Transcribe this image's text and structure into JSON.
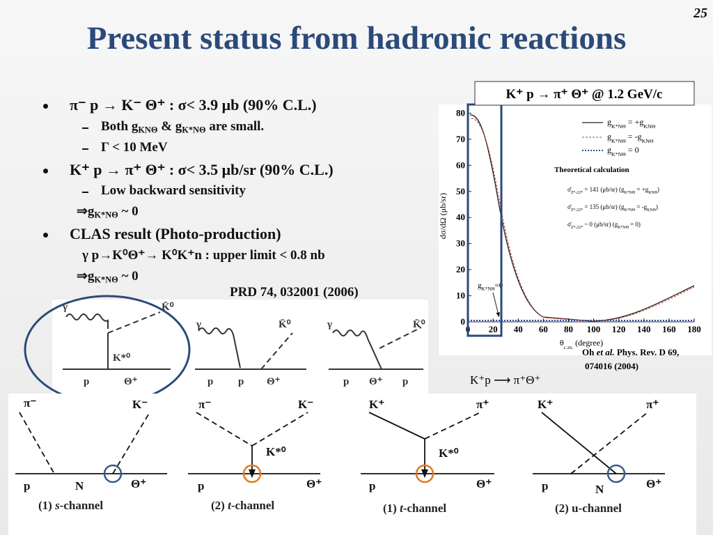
{
  "slide": {
    "page_number": "25",
    "title": "Present status from hadronic reactions"
  },
  "bullets": [
    {
      "text": "π⁻  p → K⁻  Θ⁺ : σ< 3.9 μb (90% C.L.)",
      "subitems": [
        [
          "Both g",
          "KNΘ",
          " & g",
          "K*NΘ",
          " are small."
        ],
        [
          "Γ < 10 MeV"
        ]
      ]
    },
    {
      "text": "K⁺ p → π⁺  Θ⁺ : σ< 3.5 μb/sr  (90% C.L.)",
      "subitems": [
        [
          "Low backward sensitivity"
        ]
      ],
      "notes": [
        [
          "⇒g",
          "K*NΘ",
          " ~ 0"
        ]
      ]
    },
    {
      "text": "CLAS result (Photo-production)",
      "notes": [
        [
          "γ p→K⁰Θ⁺→ K⁰K⁺n : upper limit < 0.8 nb"
        ],
        [
          "⇒g",
          "K*NΘ",
          " ~ 0"
        ]
      ]
    }
  ],
  "reference": "PRD 74, 032001 (2006)",
  "plot": {
    "title": "K⁺ p → π⁺  Θ⁺ @ 1.2 GeV/c",
    "x_label": [
      "θ",
      "c.m.",
      " (degree)"
    ],
    "y_label": "dσ/dΩ (μb/sr)",
    "xlim": [
      0,
      180
    ],
    "ylim": [
      0,
      82
    ],
    "xticks": [
      0,
      20,
      40,
      60,
      80,
      100,
      120,
      140,
      160,
      180
    ],
    "yticks": [
      0,
      10,
      20,
      30,
      40,
      50,
      60,
      70,
      80
    ],
    "legend": [
      [
        "g",
        "K*NΘ",
        " = +g",
        "KNΘ"
      ],
      [
        "g",
        "K*NΘ",
        " = -g",
        "KNΘ"
      ],
      [
        "g",
        "K*NΘ",
        " = 0"
      ]
    ],
    "theory_title": "Theoretical calculation",
    "theory_lines": [
      [
        "σ̄",
        "Z*-22*",
        " = 141 (μb/sr) (g",
        "K*NΘ",
        " = +g",
        "KNΘ",
        ")"
      ],
      [
        "σ̄",
        "Z*-22*",
        " = 135 (μb/sr) (g",
        "K*NΘ",
        " = -g",
        "KNΘ",
        ")"
      ],
      [
        "σ̄",
        "Z*-22*",
        " ~ 0 (μb/sr) (g",
        "K*NΘ",
        " = 0)"
      ]
    ],
    "annotation": [
      "g",
      "K*NΘ",
      "=0"
    ],
    "citation": [
      [
        "Oh ",
        "et al.",
        " Phys. Rev. D 69,"
      ],
      [
        "074016 (2004)"
      ]
    ]
  },
  "photo_diagrams": [
    {
      "labels": [
        "γ",
        "K̄⁰",
        "K*⁰",
        "p",
        "Θ⁺"
      ]
    },
    {
      "labels": [
        "γ",
        "K̄⁰",
        "p",
        "p",
        "Θ⁺"
      ]
    },
    {
      "labels": [
        "γ",
        "K̄⁰",
        "p",
        "Θ⁺",
        "p"
      ]
    }
  ],
  "reaction": "K⁺p ⟶ π⁺Θ⁺",
  "hadron_diagrams": [
    {
      "labels": [
        "π⁻",
        "K⁻",
        "p",
        "N",
        "Θ⁺"
      ],
      "caption": [
        "(1) ",
        "s",
        "-channel"
      ]
    },
    {
      "labels": [
        "π⁻",
        "K⁻",
        "K*⁰",
        "p",
        "Θ⁺"
      ],
      "caption": [
        "(2) ",
        "t",
        "-channel"
      ]
    },
    {
      "labels": [
        "K⁺",
        "π⁺",
        "K*⁰",
        "p",
        "Θ⁺"
      ],
      "caption": [
        "(1) ",
        "t",
        "-channel"
      ]
    },
    {
      "labels": [
        "K⁺",
        "π⁺",
        "p",
        "N",
        "Θ⁺"
      ],
      "caption": [
        "(2) u-channel"
      ]
    }
  ]
}
